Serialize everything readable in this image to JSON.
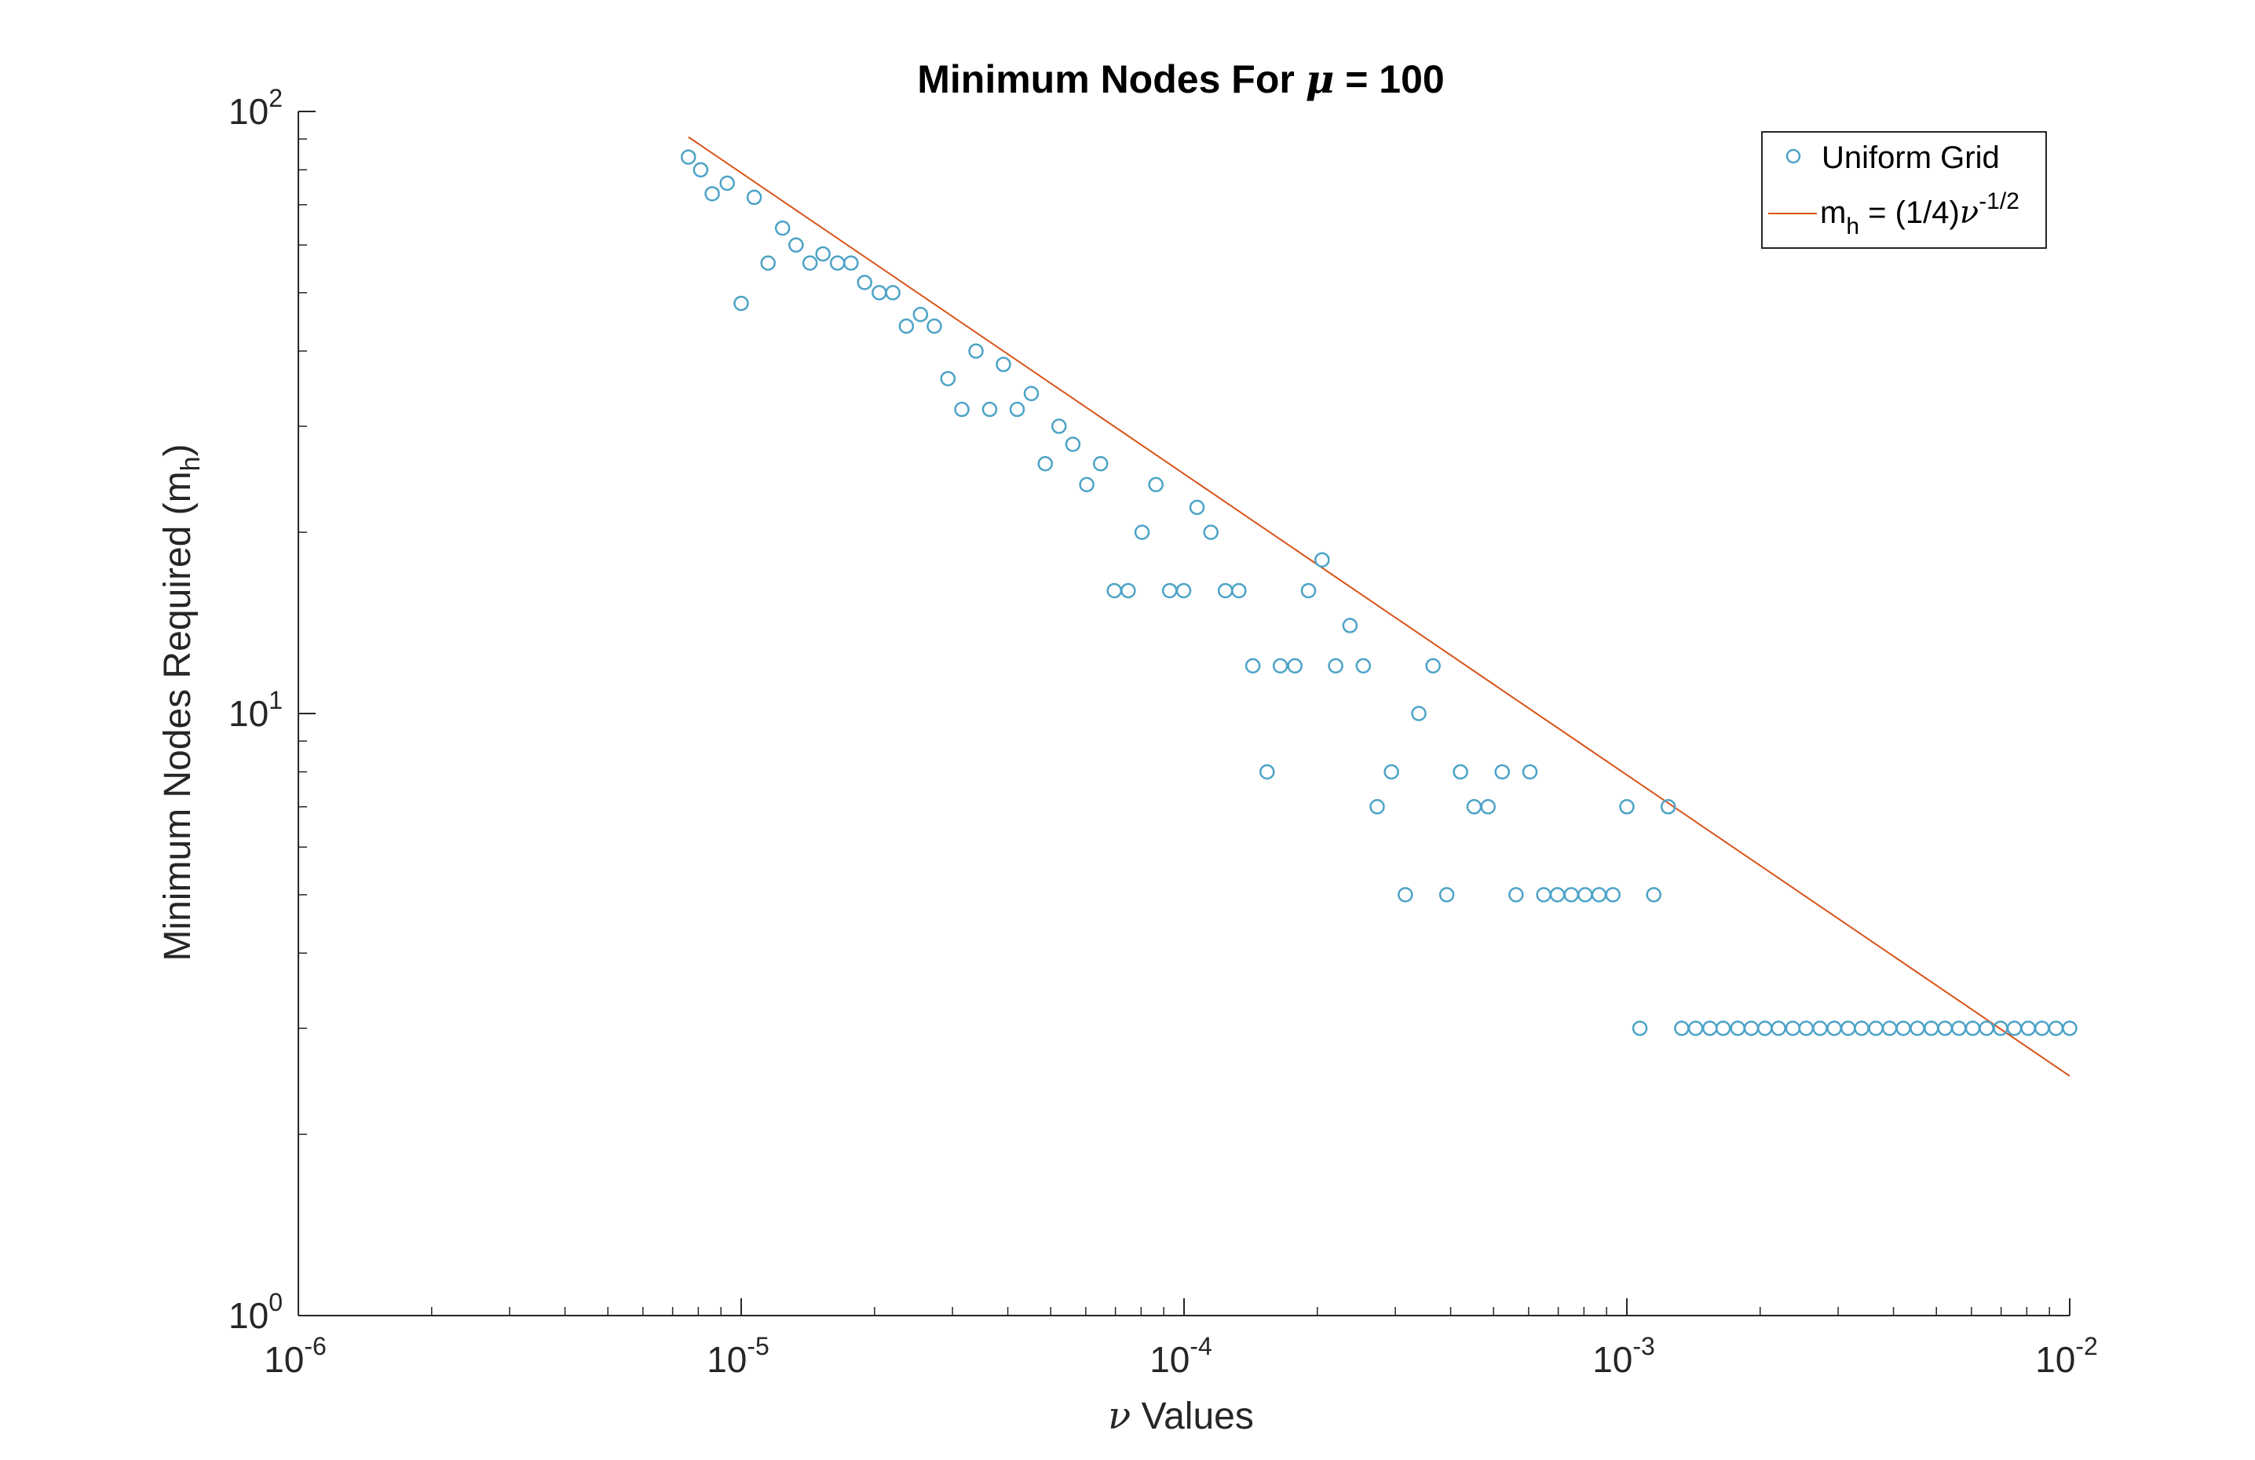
{
  "chart_data": {
    "type": "scatter",
    "title": {
      "prefix": "Minimum Nodes For ",
      "symbol": "μ",
      "suffix": " = 100"
    },
    "xlabel": {
      "symbol": "ν",
      "text": " Values"
    },
    "ylabel": {
      "text": "Minimum Nodes Required (m",
      "sub": "h",
      "close": ")"
    },
    "x_scale": "log",
    "y_scale": "log",
    "xlim": [
      1e-06,
      0.01
    ],
    "ylim": [
      1,
      100
    ],
    "grid": false,
    "legend_position": "top-right",
    "x_ticks": [
      {
        "base": "10",
        "exp": "-6",
        "value": 1e-06
      },
      {
        "base": "10",
        "exp": "-5",
        "value": 1e-05
      },
      {
        "base": "10",
        "exp": "-4",
        "value": 0.0001
      },
      {
        "base": "10",
        "exp": "-3",
        "value": 0.001
      },
      {
        "base": "10",
        "exp": "-2",
        "value": 0.01
      }
    ],
    "y_ticks": [
      {
        "base": "10",
        "exp": "0",
        "value": 1
      },
      {
        "base": "10",
        "exp": "1",
        "value": 10
      },
      {
        "base": "10",
        "exp": "2",
        "value": 100
      }
    ],
    "series": [
      {
        "name": "Uniform Grid",
        "kind": "scatter",
        "marker": "circle-open",
        "color": "#4da3c7",
        "x": [
          7.6e-06,
          8.1e-06,
          8.6e-06,
          9.3e-06,
          1e-05,
          1.07e-05,
          1.15e-05,
          1.24e-05,
          1.33e-05,
          1.43e-05,
          1.53e-05,
          1.65e-05,
          1.77e-05,
          1.9e-05,
          2.05e-05,
          2.2e-05,
          2.36e-05,
          2.54e-05,
          2.73e-05,
          2.93e-05,
          3.15e-05,
          3.39e-05,
          3.64e-05,
          3.91e-05,
          4.2e-05,
          4.52e-05,
          4.86e-05,
          5.22e-05,
          5.61e-05,
          6.03e-05,
          6.48e-05,
          6.96e-05,
          7.48e-05,
          8.04e-05,
          8.64e-05,
          9.28e-05,
          9.98e-05,
          0.000107,
          0.000115,
          0.000124,
          0.000133,
          0.000143,
          0.000154,
          0.000165,
          0.000178,
          0.000191,
          0.000205,
          0.00022,
          0.000237,
          0.000254,
          0.000273,
          0.000294,
          0.000316,
          0.000339,
          0.000365,
          0.000392,
          0.000421,
          0.000452,
          0.000486,
          0.000523,
          0.000562,
          0.000604,
          0.000649,
          0.000697,
          0.000749,
          0.000805,
          0.000865,
          0.00093,
          0.001,
          0.00107,
          0.00115,
          0.00124,
          0.00133,
          0.00143,
          0.00154,
          0.00165,
          0.00178,
          0.00191,
          0.00205,
          0.0022,
          0.00237,
          0.00254,
          0.00273,
          0.00294,
          0.00316,
          0.00339,
          0.00365,
          0.00392,
          0.00421,
          0.00453,
          0.00487,
          0.00523,
          0.00562,
          0.00604,
          0.00649,
          0.00698,
          0.0075,
          0.00806,
          0.00866,
          0.00931,
          0.01
        ],
        "y": [
          84,
          80,
          73,
          76,
          48,
          72,
          56,
          64,
          60,
          56,
          58,
          56,
          56,
          52,
          50,
          50,
          44,
          46,
          44,
          36,
          32,
          40,
          32,
          38,
          32,
          34,
          26,
          30,
          28,
          24,
          26,
          16,
          16,
          20,
          24,
          16,
          16,
          22,
          20,
          16,
          16,
          12,
          8,
          12,
          12,
          16,
          18,
          12,
          14,
          12,
          7,
          8,
          5,
          10,
          12,
          5,
          8,
          7,
          7,
          8,
          5,
          8,
          5,
          5,
          5,
          5,
          5,
          5,
          7,
          3,
          5,
          7,
          3,
          3,
          3,
          3,
          3,
          3,
          3,
          3,
          3,
          3,
          3,
          3,
          3,
          3,
          3,
          3,
          3,
          3,
          3,
          3,
          3,
          3,
          3,
          3,
          3,
          3,
          3,
          3,
          3
        ]
      },
      {
        "name": "m_h = (1/4)ν^-1/2",
        "kind": "line",
        "color": "#d95319",
        "x": [
          7.6e-06,
          0.01
        ],
        "y": [
          90.7,
          2.5
        ]
      }
    ],
    "legend": {
      "entries": [
        {
          "text": "Uniform Grid"
        },
        {
          "pre": "m",
          "sub": "h",
          "mid": " = (1/4)",
          "symbol": "ν",
          "sup": "-1/2"
        }
      ]
    }
  }
}
